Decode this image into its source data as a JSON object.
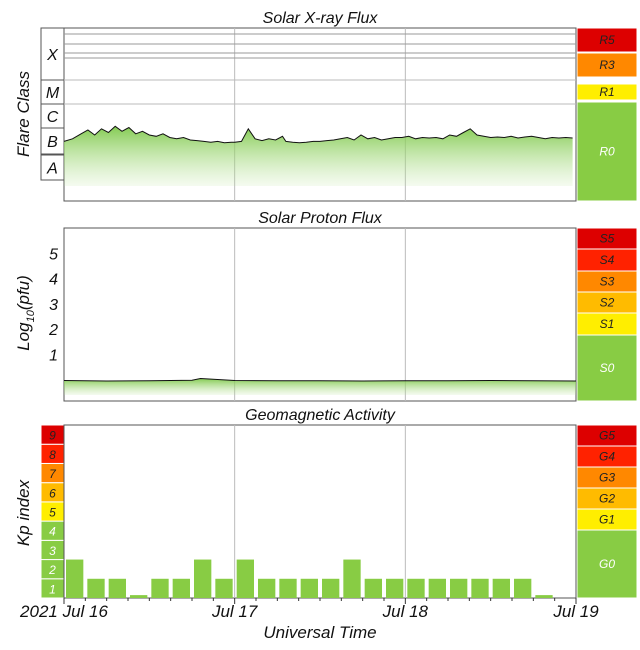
{
  "chart_data": [
    {
      "type": "area",
      "title": "Solar X-ray Flux",
      "ylabel": "Flare Class",
      "y_scale": "log",
      "class_labels": [
        "A",
        "B",
        "C",
        "M",
        "X"
      ],
      "x_range": [
        "2021-07-16",
        "2021-07-19"
      ],
      "series": [
        {
          "x_days": [
            0.0,
            0.05,
            0.1,
            0.14,
            0.18,
            0.22,
            0.26,
            0.3,
            0.34,
            0.38,
            0.42,
            0.46,
            0.5,
            0.54,
            0.58,
            0.62,
            0.66,
            0.7,
            0.74,
            0.78,
            0.82,
            0.86,
            0.9,
            0.94,
            0.98,
            1.0,
            1.04,
            1.08,
            1.12,
            1.16,
            1.2,
            1.24,
            1.28,
            1.3,
            1.34,
            1.38,
            1.42,
            1.46,
            1.5,
            1.54,
            1.58,
            1.62,
            1.66,
            1.7,
            1.74,
            1.78,
            1.82,
            1.86,
            1.9,
            1.94,
            1.98,
            2.02,
            2.06,
            2.1,
            2.14,
            2.18,
            2.22,
            2.26,
            2.3,
            2.34,
            2.38,
            2.42,
            2.46,
            2.5,
            2.54,
            2.58,
            2.62,
            2.66,
            2.7,
            2.74,
            2.78,
            2.82,
            2.86,
            2.9,
            2.94,
            2.98
          ],
          "flux_class_level": [
            1.95,
            2.05,
            2.25,
            2.4,
            2.2,
            2.45,
            2.3,
            2.55,
            2.35,
            2.5,
            2.25,
            2.35,
            2.2,
            2.15,
            2.25,
            2.1,
            2.05,
            2.1,
            2.0,
            1.98,
            1.95,
            1.92,
            1.95,
            1.9,
            1.92,
            1.92,
            1.95,
            2.45,
            2.05,
            1.98,
            2.05,
            2.0,
            2.15,
            1.95,
            1.92,
            1.9,
            1.92,
            1.95,
            1.95,
            1.98,
            2.0,
            2.05,
            2.1,
            2.0,
            2.2,
            2.05,
            2.1,
            2.0,
            2.05,
            2.1,
            2.1,
            2.15,
            2.05,
            2.1,
            2.08,
            2.1,
            2.05,
            2.2,
            2.15,
            2.3,
            2.45,
            2.2,
            2.15,
            2.1,
            2.12,
            2.1,
            2.15,
            2.08,
            2.12,
            2.15,
            2.1,
            2.05,
            2.1,
            2.08,
            2.1,
            2.08
          ]
        }
      ],
      "scale": [
        {
          "label": "R5",
          "color": "#dd0000"
        },
        {
          "label": "R3",
          "color": "#ff8800"
        },
        {
          "label": "R1",
          "color": "#ffee00"
        },
        {
          "label": "R0",
          "color": "#88cc44"
        }
      ]
    },
    {
      "type": "area",
      "title": "Solar Proton Flux",
      "ylabel": "Log10(pfu)",
      "ylabel_main": "Log",
      "ylabel_sub": "10",
      "ylabel_tail": "(pfu)",
      "ylim": [
        -0.8,
        6
      ],
      "y_ticks": [
        1,
        2,
        3,
        4,
        5
      ],
      "x_range": [
        "2021-07-16",
        "2021-07-19"
      ],
      "series": [
        {
          "x_days": [
            0.0,
            0.25,
            0.5,
            0.75,
            0.8,
            1.0,
            1.25,
            1.5,
            1.75,
            2.0,
            2.25,
            2.5,
            2.75,
            3.0
          ],
          "log_flux": [
            -0.03,
            -0.05,
            -0.04,
            -0.02,
            0.05,
            -0.03,
            -0.04,
            -0.04,
            -0.05,
            -0.04,
            -0.04,
            -0.03,
            -0.04,
            -0.05
          ]
        }
      ],
      "scale": [
        {
          "label": "S5",
          "color": "#dd0000"
        },
        {
          "label": "S4",
          "color": "#ff2200"
        },
        {
          "label": "S3",
          "color": "#ff8800"
        },
        {
          "label": "S2",
          "color": "#ffbb00"
        },
        {
          "label": "S1",
          "color": "#ffee00"
        },
        {
          "label": "S0",
          "color": "#88cc44"
        }
      ]
    },
    {
      "type": "bar",
      "title": "Geomagnetic Activity",
      "ylabel": "Kp index",
      "xlabel": "Universal Time",
      "ylim": [
        0,
        9
      ],
      "y_ticks": [
        "1",
        "2",
        "3",
        "4",
        "5",
        "6",
        "7",
        "8",
        "9"
      ],
      "x_ticks": [
        {
          "label": "2021 Jul 16",
          "day": 0
        },
        {
          "label": "Jul 17",
          "day": 1
        },
        {
          "label": "Jul 18",
          "day": 2
        },
        {
          "label": "Jul 19",
          "day": 3
        }
      ],
      "bar_interval_hours": 3,
      "values": [
        2.0,
        1.0,
        1.0,
        0.15,
        1.0,
        1.0,
        2.0,
        1.0,
        2.0,
        1.0,
        1.0,
        1.0,
        1.0,
        2.0,
        1.0,
        1.0,
        1.0,
        1.0,
        1.0,
        1.0,
        1.0,
        1.0,
        0.15
      ],
      "level_colors": [
        "#88cc44",
        "#88cc44",
        "#88cc44",
        "#88cc44",
        "#ffee00",
        "#ffbb00",
        "#ff8800",
        "#ff2200",
        "#dd0000"
      ],
      "scale": [
        {
          "label": "G5",
          "color": "#dd0000"
        },
        {
          "label": "G4",
          "color": "#ff2200"
        },
        {
          "label": "G3",
          "color": "#ff8800"
        },
        {
          "label": "G2",
          "color": "#ffbb00"
        },
        {
          "label": "G1",
          "color": "#ffee00"
        },
        {
          "label": "G0",
          "color": "#88cc44"
        }
      ]
    }
  ]
}
